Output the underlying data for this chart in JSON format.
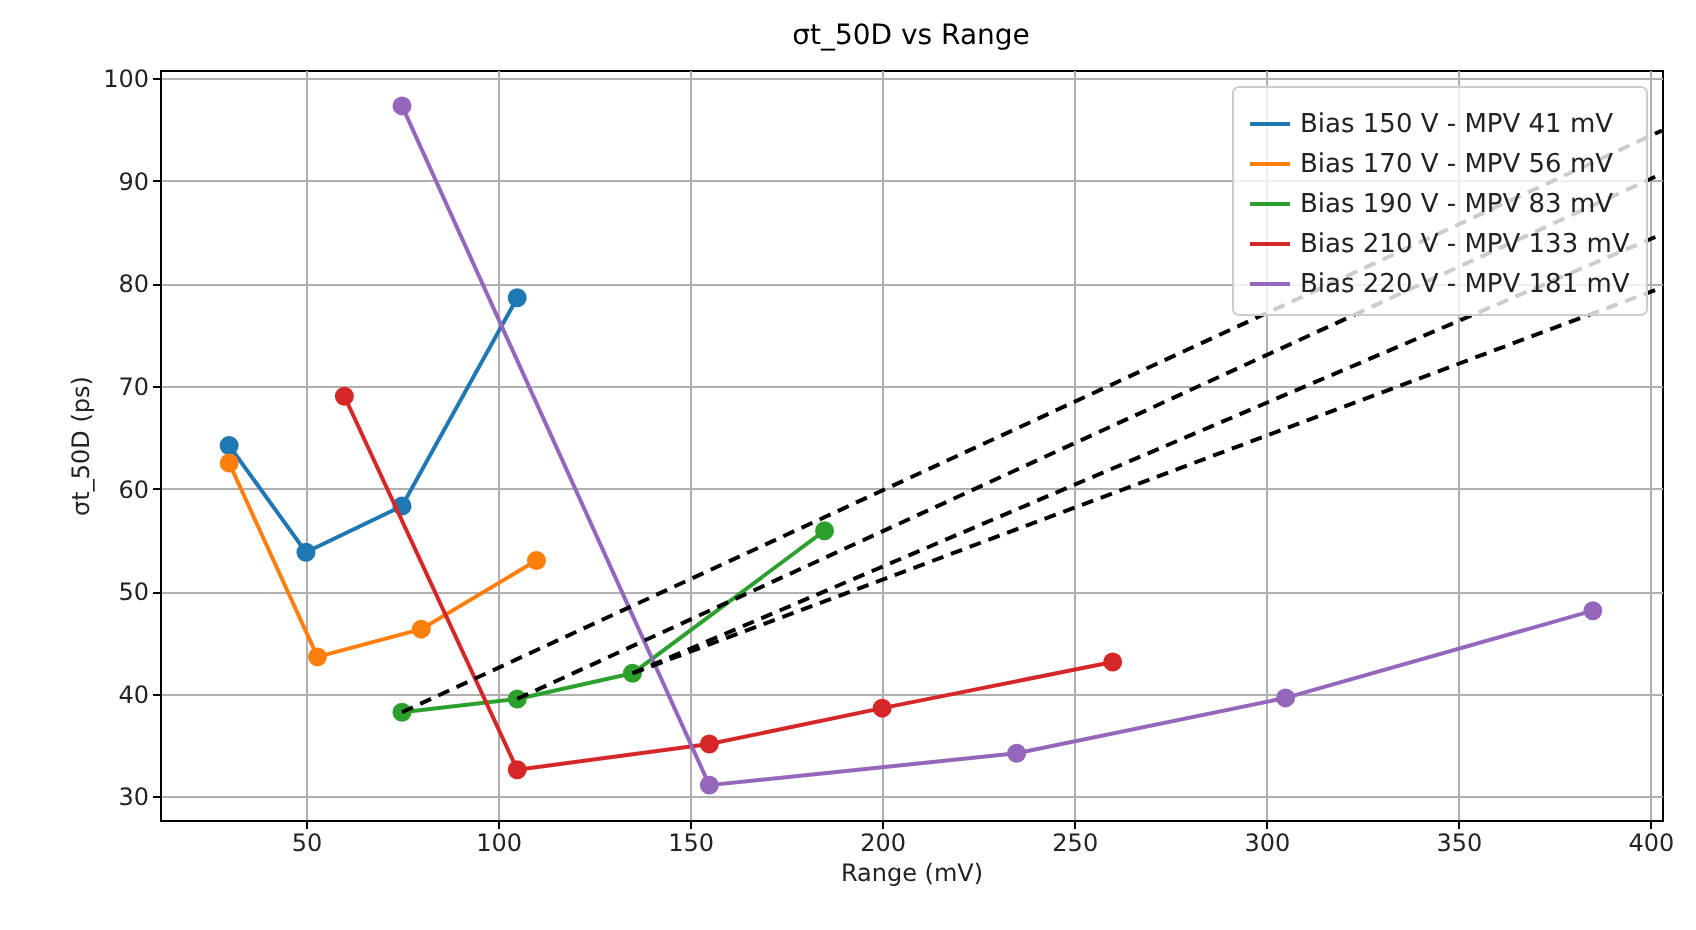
{
  "chart_data": {
    "type": "line",
    "title": "σt_50D vs Range",
    "xlabel": "Range (mV)",
    "ylabel": "σt_50D (ps)",
    "xlim": [
      12,
      403
    ],
    "ylim": [
      27.7,
      100.8
    ],
    "xticks": [
      50,
      100,
      150,
      200,
      250,
      300,
      350,
      400
    ],
    "yticks": [
      30,
      40,
      50,
      60,
      70,
      80,
      90,
      100
    ],
    "grid": true,
    "legend": "top right",
    "marker": "circle",
    "series": [
      {
        "name": "Bias 150 V - MPV 41 mV",
        "color": "#1f77b4",
        "x": [
          30,
          50,
          75,
          105
        ],
        "values": [
          64.2,
          53.8,
          58.3,
          78.6
        ]
      },
      {
        "name": "Bias 170 V - MPV 56 mV",
        "color": "#ff7f0e",
        "x": [
          30,
          53,
          80,
          110
        ],
        "values": [
          62.5,
          43.6,
          46.3,
          53
        ]
      },
      {
        "name": "Bias 190 V - MPV 83 mV",
        "color": "#2ca02c",
        "x": [
          75,
          105,
          135,
          185
        ],
        "values": [
          38.2,
          39.5,
          42,
          55.9
        ]
      },
      {
        "name": "Bias 210 V - MPV 133 mV",
        "color": "#d62728",
        "x": [
          60,
          105,
          155,
          200,
          260
        ],
        "values": [
          69,
          32.6,
          35.1,
          38.6,
          43.1
        ]
      },
      {
        "name": "Bias 220 V - MPV 181 mV",
        "color": "#9467bd",
        "x": [
          75,
          155,
          235,
          305,
          385
        ],
        "values": [
          97.3,
          31.1,
          34.2,
          39.6,
          48.1
        ]
      },
      {
        "color": "#000000",
        "line_style": "dashed",
        "marker": "none",
        "x": [
          75,
          403
        ],
        "values": [
          38.2,
          94.9
        ]
      },
      {
        "color": "#000000",
        "line_style": "dashed",
        "marker": "none",
        "x": [
          105,
          403
        ],
        "values": [
          39.5,
          90.7
        ]
      },
      {
        "color": "#000000",
        "line_style": "dashed",
        "marker": "none",
        "x": [
          135,
          403
        ],
        "values": [
          42,
          84.8
        ]
      },
      {
        "color": "#000000",
        "line_style": "dashed",
        "marker": "none",
        "x": [
          135,
          403
        ],
        "values": [
          42,
          79.6
        ]
      }
    ]
  }
}
